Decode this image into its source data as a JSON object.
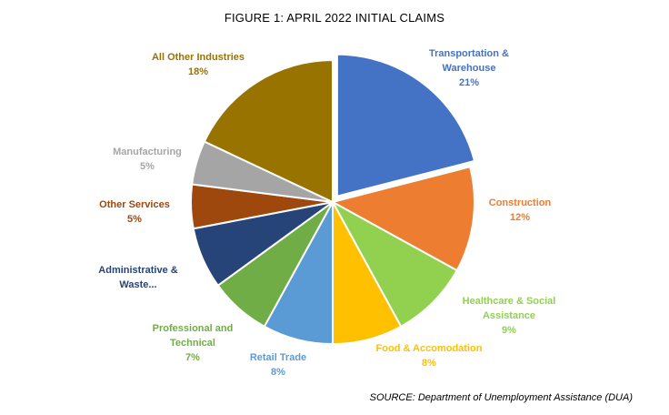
{
  "chart_data": {
    "type": "pie",
    "title": "FIGURE 1: APRIL 2022 INITIAL CLAIMS",
    "source": "SOURCE: Department of Unemployment Assistance (DUA)",
    "slices": [
      {
        "name": "Transportation & Warehouse",
        "label_lines": [
          "Transportation &",
          "Warehouse"
        ],
        "pct_label": "21%",
        "value": 21,
        "color": "#4472C4",
        "exploded": true
      },
      {
        "name": "Construction",
        "label_lines": [
          "Construction"
        ],
        "pct_label": "12%",
        "value": 12,
        "color": "#ED7D31",
        "exploded": false
      },
      {
        "name": "Healthcare & Social Assistance",
        "label_lines": [
          "Healthcare & Social",
          "Assistance"
        ],
        "pct_label": "9%",
        "value": 9,
        "color": "#92D050",
        "exploded": false
      },
      {
        "name": "Food & Accomodation",
        "label_lines": [
          "Food & Accomodation"
        ],
        "pct_label": "8%",
        "value": 8,
        "color": "#FFC000",
        "exploded": false
      },
      {
        "name": "Retail Trade",
        "label_lines": [
          "Retail Trade"
        ],
        "pct_label": "8%",
        "value": 8,
        "color": "#5B9BD5",
        "exploded": false
      },
      {
        "name": "Professional and Technical",
        "label_lines": [
          "Professional and",
          "Technical"
        ],
        "pct_label": "7%",
        "value": 7,
        "color": "#70AD47",
        "exploded": false
      },
      {
        "name": "Administrative & Waste...",
        "label_lines": [
          "Administrative &",
          "Waste..."
        ],
        "pct_label": "",
        "value": 7,
        "color": "#264478",
        "exploded": false
      },
      {
        "name": "Other Services",
        "label_lines": [
          "Other Services"
        ],
        "pct_label": "5%",
        "value": 5,
        "color": "#9E480E",
        "exploded": false
      },
      {
        "name": "Manufacturing",
        "label_lines": [
          "Manufacturing"
        ],
        "pct_label": "5%",
        "value": 5,
        "color": "#A5A5A5",
        "exploded": false
      },
      {
        "name": "All Other Industries",
        "label_lines": [
          "All Other Industries"
        ],
        "pct_label": "18%",
        "value": 18,
        "color": "#997300",
        "exploded": false
      }
    ],
    "label_colors": {
      "Transportation & Warehouse": "#4472C4",
      "Construction": "#ED7D31",
      "Healthcare & Social Assistance": "#92D050",
      "Food & Accomodation": "#FFC000",
      "Retail Trade": "#5B9BD5",
      "Professional and Technical": "#70AD47",
      "Administrative & Waste...": "#264478",
      "Other Services": "#9E480E",
      "Manufacturing": "#A5A5A5",
      "All Other Industries": "#997300"
    },
    "legend": "none",
    "labels": "outside"
  }
}
